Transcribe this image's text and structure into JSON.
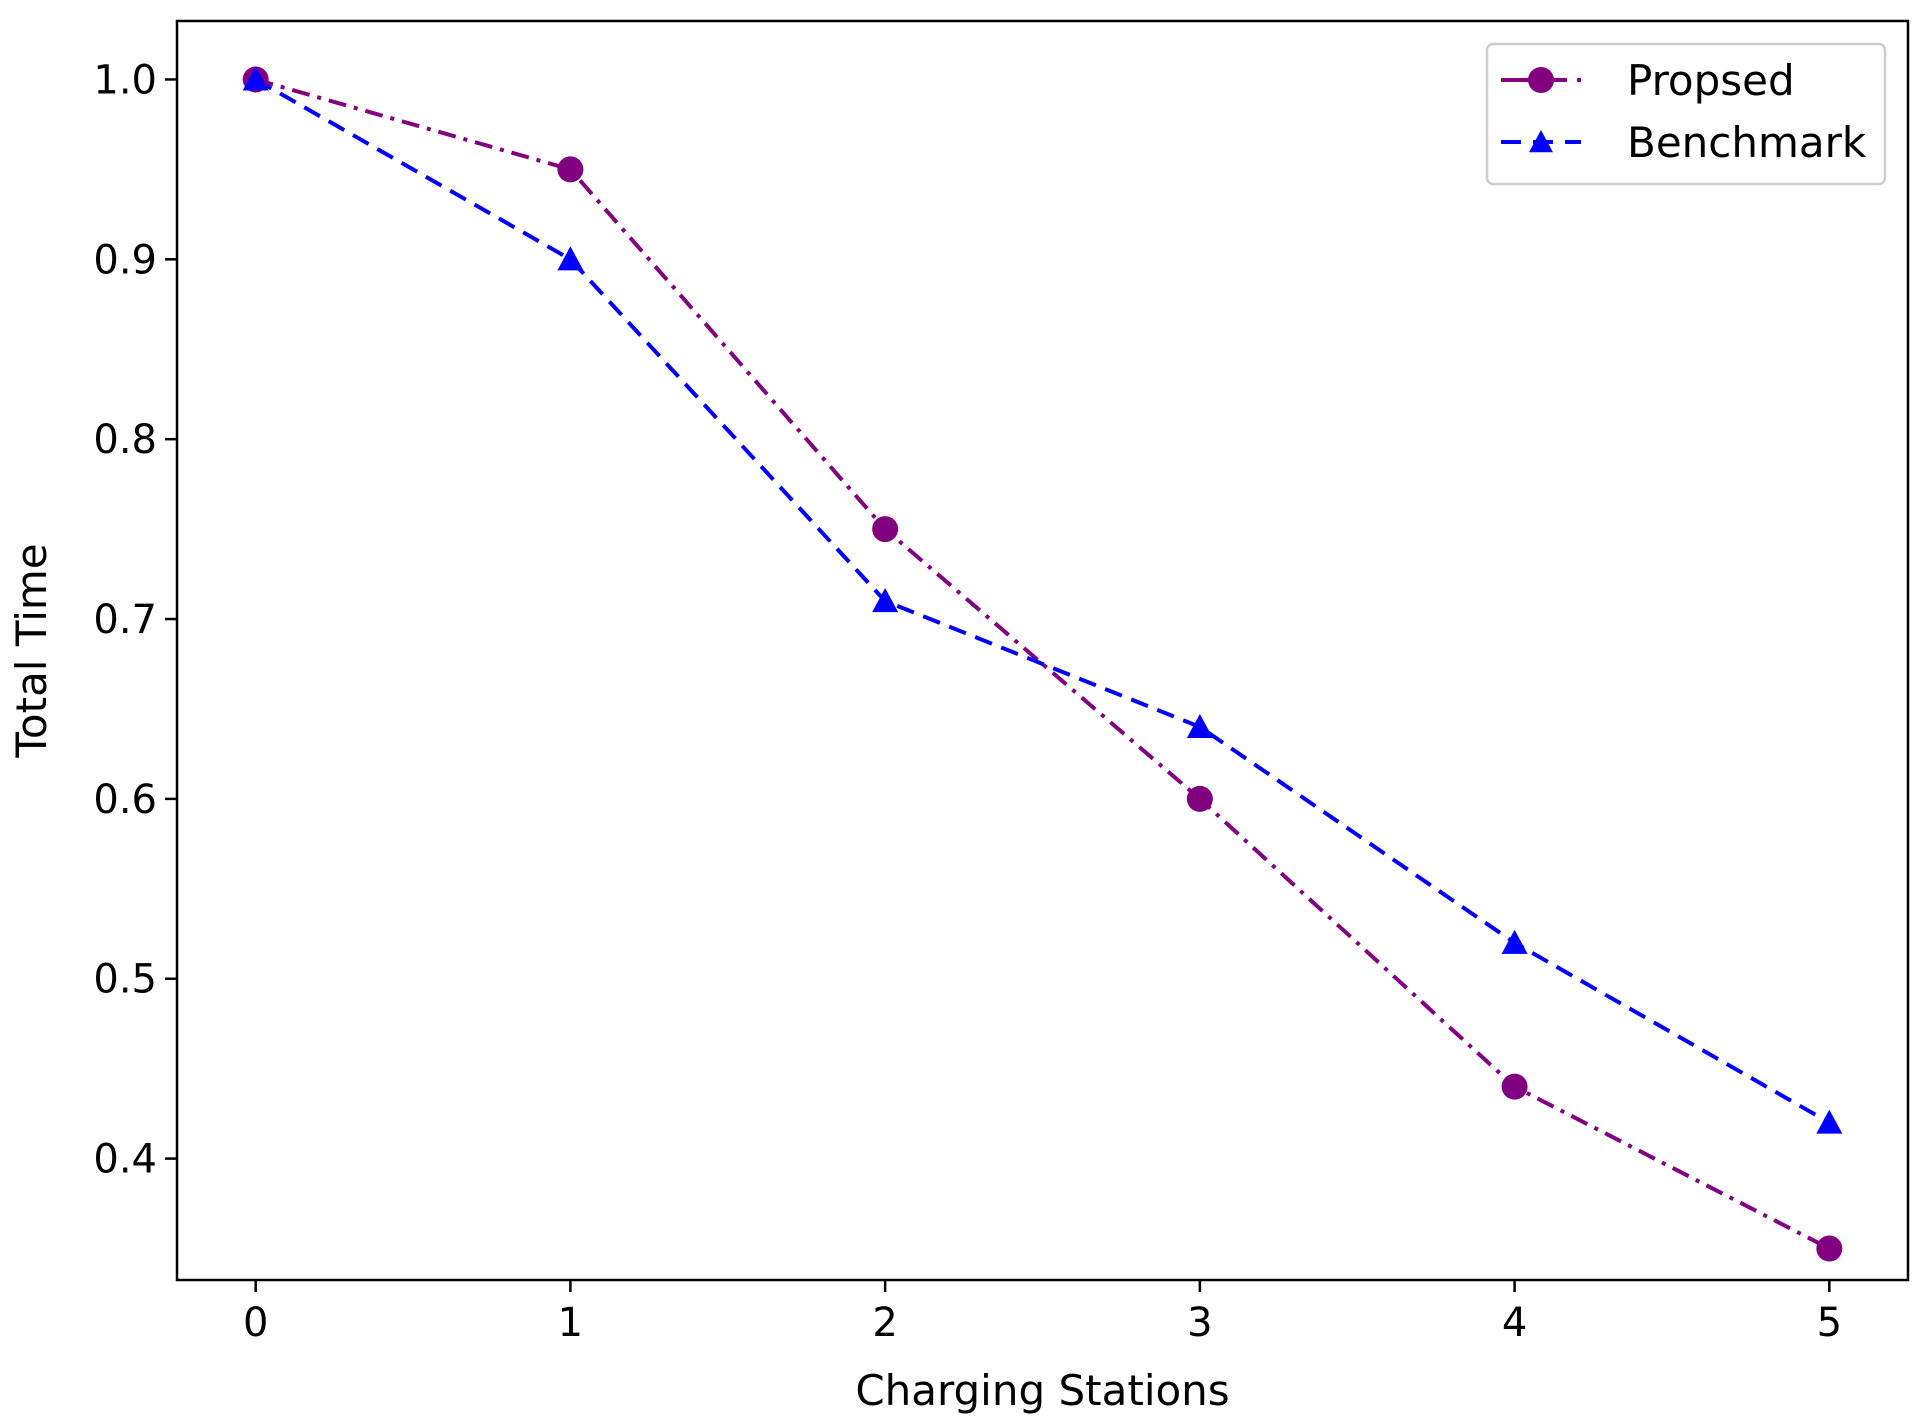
{
  "chart_data": {
    "type": "line",
    "title": "",
    "xlabel": "Charging Stations",
    "ylabel": "Total Time",
    "x": [
      0,
      1,
      2,
      3,
      4,
      5
    ],
    "xlim": [
      -0.25,
      5.25
    ],
    "ylim": [
      0.3325,
      1.0325
    ],
    "xticks": [
      0,
      1,
      2,
      3,
      4,
      5
    ],
    "xtick_labels": [
      "0",
      "1",
      "2",
      "3",
      "4",
      "5"
    ],
    "yticks": [
      0.4,
      0.5,
      0.6,
      0.7,
      0.8,
      0.9,
      1.0
    ],
    "ytick_labels": [
      "0.4",
      "0.5",
      "0.6",
      "0.7",
      "0.8",
      "0.9",
      "1.0"
    ],
    "grid": false,
    "legend_position": "top-right",
    "series": [
      {
        "name": "Propsed",
        "values": [
          1.0,
          0.95,
          0.75,
          0.6,
          0.44,
          0.35
        ],
        "color": "#800080",
        "marker": "circle",
        "linestyle": "dashdot"
      },
      {
        "name": "Benchmark",
        "values": [
          1.0,
          0.9,
          0.71,
          0.64,
          0.52,
          0.42
        ],
        "color": "#0000ff",
        "marker": "triangle",
        "linestyle": "dashed"
      }
    ]
  }
}
